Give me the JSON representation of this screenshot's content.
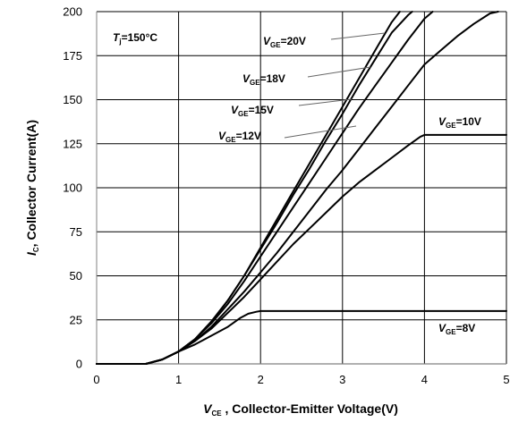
{
  "chart_data": {
    "type": "line",
    "xlim": [
      0,
      5
    ],
    "ylim": [
      0,
      200
    ],
    "x_ticks": [
      "0",
      "1",
      "2",
      "3",
      "4",
      "5"
    ],
    "y_ticks": [
      "0",
      "25",
      "50",
      "75",
      "100",
      "125",
      "150",
      "175",
      "200"
    ],
    "grid": true,
    "xlabel": {
      "main": "V",
      "sub": "CE",
      "rest": " , Collector-Emitter Voltage(V)"
    },
    "ylabel": {
      "main": "I",
      "sub": "C",
      "rest": ", Collector Current(A)"
    },
    "condition": {
      "main": "T",
      "sub": "j",
      "rest": "=150°C"
    },
    "colors": {
      "line": "#000000",
      "grid": "#000000",
      "axis": "#808080"
    },
    "series": [
      {
        "name": "V_GE=20V",
        "label": {
          "main": "V",
          "sub": "GE",
          "rest": "=20V"
        },
        "x": [
          0,
          0.6,
          0.8,
          1.0,
          1.2,
          1.4,
          1.6,
          1.8,
          2.0,
          2.2,
          2.4,
          2.6,
          2.8,
          3.0,
          3.2,
          3.4,
          3.6,
          3.7
        ],
        "y": [
          0,
          0,
          2.5,
          7,
          14,
          24,
          36,
          50,
          66,
          82,
          98,
          114,
          130,
          146,
          162,
          178,
          194,
          200
        ]
      },
      {
        "name": "V_GE=18V",
        "label": {
          "main": "V",
          "sub": "GE",
          "rest": "=18V"
        },
        "x": [
          0,
          0.6,
          0.8,
          1.0,
          1.2,
          1.4,
          1.6,
          1.8,
          2.0,
          2.2,
          2.4,
          2.6,
          2.8,
          3.0,
          3.2,
          3.4,
          3.6,
          3.8,
          3.85
        ],
        "y": [
          0,
          0,
          2.5,
          7,
          14,
          24,
          36,
          50,
          65,
          80,
          96,
          111,
          127,
          142,
          158,
          173,
          188,
          198,
          200
        ]
      },
      {
        "name": "V_GE=15V",
        "label": {
          "main": "V",
          "sub": "GE",
          "rest": "=15V"
        },
        "x": [
          0,
          0.6,
          0.8,
          1.0,
          1.2,
          1.4,
          1.6,
          1.8,
          2.0,
          2.2,
          2.4,
          2.6,
          2.8,
          3.0,
          3.2,
          3.4,
          3.6,
          3.8,
          4.0,
          4.1
        ],
        "y": [
          0,
          0,
          2.5,
          7,
          14,
          23,
          34,
          47,
          61,
          75,
          89,
          103,
          117,
          131,
          145,
          158,
          171,
          184,
          196,
          200
        ]
      },
      {
        "name": "V_GE=12V",
        "label": {
          "main": "V",
          "sub": "GE",
          "rest": "=12V"
        },
        "x": [
          0,
          0.6,
          0.8,
          1.0,
          1.2,
          1.4,
          1.6,
          1.8,
          2.0,
          2.2,
          2.4,
          2.6,
          2.8,
          3.0,
          3.2,
          3.4,
          3.6,
          3.8,
          4.0,
          4.2,
          4.4,
          4.6,
          4.8,
          4.9
        ],
        "y": [
          0,
          0,
          2.5,
          7,
          13,
          21,
          31,
          41,
          52,
          63,
          75,
          87,
          99,
          110,
          122,
          134,
          146,
          158,
          170,
          178,
          186,
          193,
          199,
          200
        ]
      },
      {
        "name": "V_GE=10V",
        "label": {
          "main": "V",
          "sub": "GE",
          "rest": "=10V"
        },
        "x": [
          0,
          0.6,
          0.8,
          1.0,
          1.2,
          1.4,
          1.6,
          1.8,
          2.0,
          2.2,
          2.4,
          2.6,
          2.8,
          3.0,
          3.2,
          3.4,
          3.6,
          3.8,
          3.95,
          4.0,
          4.5,
          5.0
        ],
        "y": [
          0,
          0,
          2.5,
          7,
          13,
          20,
          29,
          38,
          48,
          58,
          68,
          77,
          86,
          95,
          103,
          110,
          117,
          124,
          129,
          130,
          130,
          130
        ]
      },
      {
        "name": "V_GE=8V",
        "label": {
          "main": "V",
          "sub": "GE",
          "rest": "=8V"
        },
        "x": [
          0,
          0.6,
          0.8,
          1.0,
          1.2,
          1.4,
          1.6,
          1.75,
          1.85,
          1.95,
          2.0,
          2.5,
          3.0,
          4.0,
          5.0
        ],
        "y": [
          0,
          0,
          2.5,
          7,
          11,
          16,
          21,
          26,
          28.5,
          29.6,
          30,
          30,
          30,
          30,
          30
        ]
      }
    ]
  }
}
